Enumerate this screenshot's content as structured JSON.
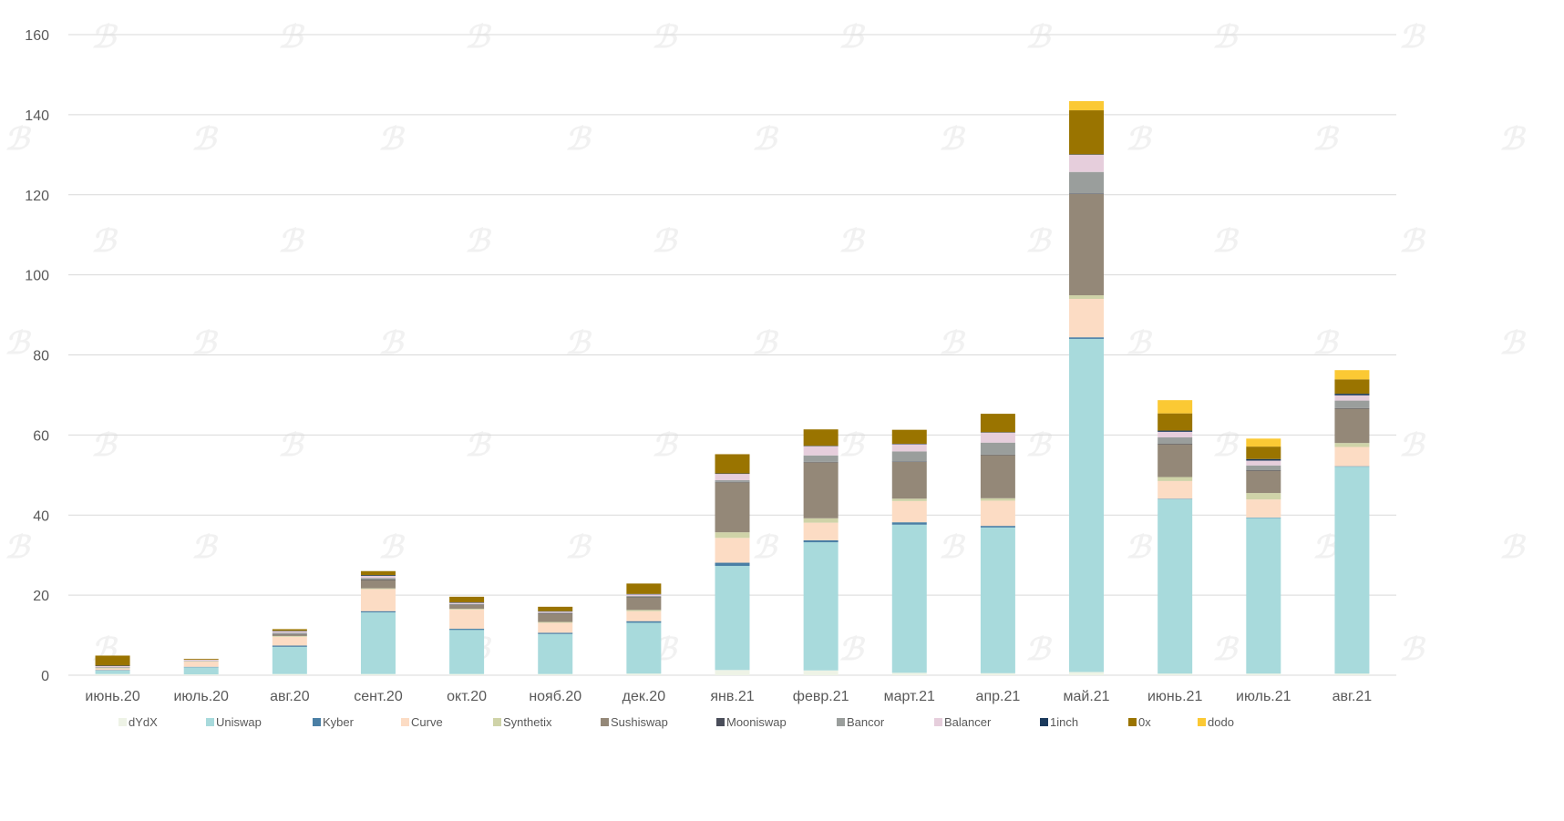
{
  "chart_data": {
    "type": "bar",
    "stacked": true,
    "title": "",
    "xlabel": "",
    "ylabel": "",
    "ylim": [
      0,
      160
    ],
    "yticks": [
      0,
      20,
      40,
      60,
      80,
      100,
      120,
      140,
      160
    ],
    "grid": true,
    "legend_position": "bottom",
    "categories": [
      "июнь.20",
      "июль.20",
      "авг.20",
      "сент.20",
      "окт.20",
      "нояб.20",
      "дек.20",
      "янв.21",
      "февр.21",
      "март.21",
      "апр.21",
      "май.21",
      "июнь.21",
      "июль.21",
      "авг.21"
    ],
    "series": [
      {
        "name": "dYdX",
        "color": "#eef3e6",
        "values": [
          0.3,
          0.2,
          0.3,
          0.3,
          0.3,
          0.3,
          0.4,
          1.3,
          1.2,
          0.6,
          0.5,
          0.8,
          0.4,
          0.4,
          0.4
        ]
      },
      {
        "name": "Uniswap",
        "color": "#a8dadc",
        "values": [
          0.9,
          1.8,
          6.8,
          15.4,
          11.0,
          10.0,
          12.7,
          26.0,
          32.0,
          37.0,
          36.4,
          83.2,
          43.6,
          38.9,
          51.7
        ]
      },
      {
        "name": "Kyber",
        "color": "#4a7fa5",
        "values": [
          0.1,
          0.1,
          0.3,
          0.3,
          0.3,
          0.3,
          0.4,
          0.8,
          0.5,
          0.6,
          0.4,
          0.4,
          0.1,
          0.1,
          0.1
        ]
      },
      {
        "name": "Curve",
        "color": "#fcdcc4",
        "values": [
          0.4,
          1.3,
          2.2,
          5.5,
          4.8,
          2.5,
          2.5,
          6.2,
          4.4,
          5.3,
          6.3,
          9.6,
          4.4,
          4.5,
          4.8
        ]
      },
      {
        "name": "Synthetix",
        "color": "#cfd3a8",
        "values": [
          0.1,
          0.1,
          0.2,
          0.2,
          0.2,
          0.2,
          0.3,
          1.4,
          1.1,
          0.6,
          0.6,
          0.9,
          1.0,
          1.6,
          1.0
        ]
      },
      {
        "name": "Sushiswap",
        "color": "#948878",
        "values": [
          0.0,
          0.0,
          0.4,
          2.1,
          1.0,
          2.1,
          3.2,
          12.5,
          14.0,
          9.2,
          10.8,
          25.3,
          8.2,
          5.6,
          8.6
        ]
      },
      {
        "name": "Mooniswap",
        "color": "#4a4e5a",
        "values": [
          0.0,
          0.0,
          0.1,
          0.1,
          0.1,
          0.1,
          0.1,
          0.1,
          0.1,
          0.1,
          0.1,
          0.1,
          0.1,
          0.1,
          0.1
        ]
      },
      {
        "name": "Bancor",
        "color": "#9a9e9c",
        "values": [
          0.2,
          0.1,
          0.3,
          0.4,
          0.1,
          0.1,
          0.2,
          0.4,
          1.6,
          2.5,
          3.0,
          5.4,
          1.6,
          1.2,
          1.9
        ]
      },
      {
        "name": "Balancer",
        "color": "#e6cedc",
        "values": [
          0.3,
          0.3,
          0.4,
          0.5,
          0.3,
          0.3,
          0.4,
          1.6,
          2.3,
          1.8,
          2.5,
          4.3,
          1.4,
          1.2,
          1.3
        ]
      },
      {
        "name": "1inch",
        "color": "#1b3a5c",
        "values": [
          0.1,
          0.0,
          0.1,
          0.2,
          0.1,
          0.1,
          0.1,
          0.1,
          0.1,
          0.1,
          0.1,
          0.1,
          0.3,
          0.4,
          0.4
        ]
      },
      {
        "name": "0x",
        "color": "#9a7400",
        "values": [
          2.5,
          0.2,
          0.4,
          1.0,
          1.4,
          1.1,
          2.6,
          4.8,
          4.1,
          3.5,
          4.6,
          11.0,
          4.3,
          3.1,
          3.6
        ]
      },
      {
        "name": "dodo",
        "color": "#fbc934",
        "values": [
          0.0,
          0.0,
          0.0,
          0.0,
          0.0,
          0.0,
          0.0,
          0.0,
          0.0,
          0.0,
          0.0,
          2.3,
          3.3,
          2.0,
          2.3
        ]
      }
    ]
  }
}
